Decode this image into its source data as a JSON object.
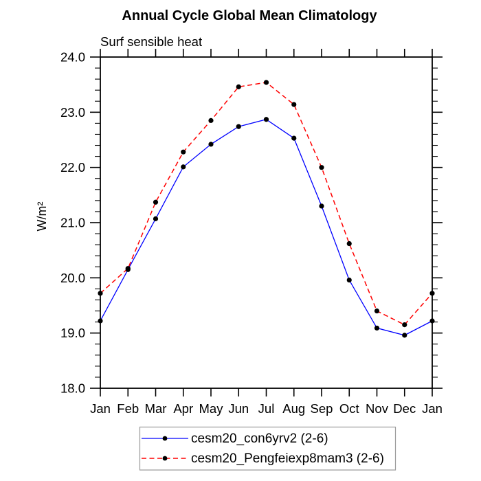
{
  "page": {
    "background": "#ffffff",
    "frame_color": "#000000",
    "legend_border_color": "#999999"
  },
  "chart_data": {
    "type": "line",
    "title": "Annual Cycle Global Mean Climatology",
    "subtitle": "Surf sensible heat",
    "xlabel": "",
    "ylabel": "W/m²",
    "categories": [
      "Jan",
      "Feb",
      "Mar",
      "Apr",
      "May",
      "Jun",
      "Jul",
      "Aug",
      "Sep",
      "Oct",
      "Nov",
      "Dec",
      "Jan"
    ],
    "ylim": [
      18.0,
      24.0
    ],
    "ytick_major": [
      18,
      19,
      20,
      21,
      22,
      23,
      24
    ],
    "ytick_labels": [
      "18.0",
      "19.0",
      "20.0",
      "21.0",
      "22.0",
      "23.0",
      "24.0"
    ],
    "ytick_minor_step": 0.2,
    "grid": false,
    "legend_position": "bottom-center",
    "marker": "filled-black-circle",
    "marker_color": "#000000",
    "series": [
      {
        "name": "cesm20_con6yrv2 (2-6)",
        "color": "#0000ff",
        "style": "solid",
        "values": [
          19.22,
          20.15,
          21.07,
          22.01,
          22.42,
          22.74,
          22.87,
          22.53,
          21.3,
          19.96,
          19.09,
          18.96,
          19.22
        ]
      },
      {
        "name": "cesm20_Pengfeiexp8mam3 (2-6)",
        "color": "#ff0000",
        "style": "dashed",
        "values": [
          19.72,
          20.17,
          21.37,
          22.28,
          22.85,
          23.46,
          23.54,
          23.14,
          22.0,
          20.62,
          19.4,
          19.15,
          19.72
        ]
      }
    ]
  }
}
